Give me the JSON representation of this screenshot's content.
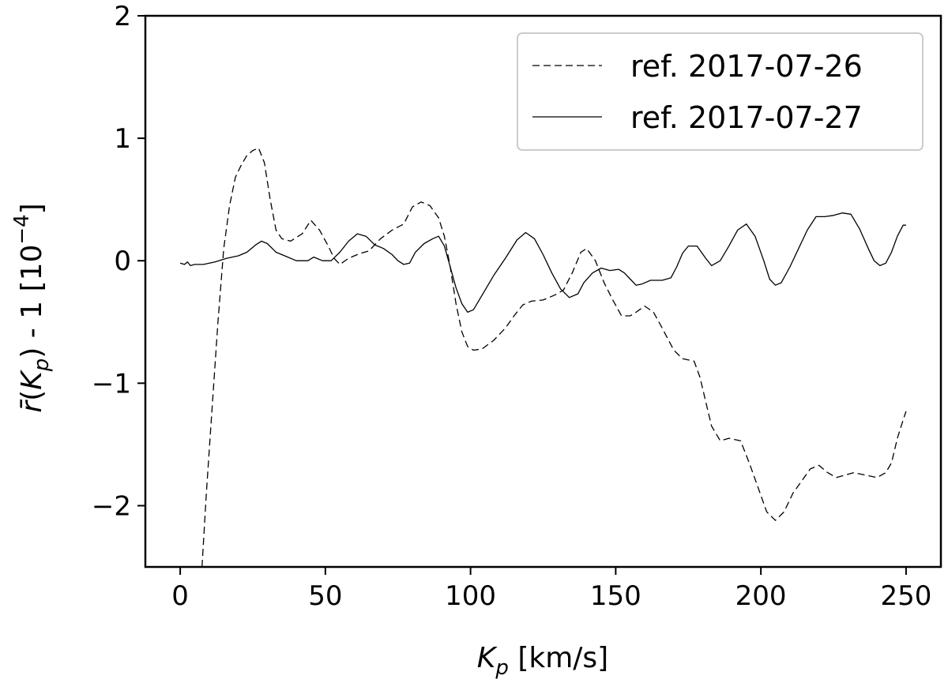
{
  "chart_data": {
    "type": "line",
    "xlabel_var": "K",
    "xlabel_sub": "p",
    "xlabel_unit": " [km/s]",
    "ylabel": {
      "rbar": "r̄",
      "open": "(",
      "var": "K",
      "sub": "p",
      "close": ") - 1 [10",
      "exp": "−4",
      "end": "]"
    },
    "xlim": [
      -12,
      262
    ],
    "ylim": [
      -2.5,
      2
    ],
    "xticks": [
      0,
      50,
      100,
      150,
      200,
      250
    ],
    "xtick_labels": [
      "0",
      "50",
      "100",
      "150",
      "200",
      "250"
    ],
    "yticks": [
      2,
      1,
      0,
      -1,
      -2
    ],
    "ytick_labels": [
      "2",
      "1",
      "0",
      "−1",
      "−2"
    ],
    "legend_position": "upper right",
    "series": [
      {
        "name": "ref. 2017-07-26",
        "style": "dashed",
        "color": "#000000",
        "points": [
          [
            7.5,
            -2.5
          ],
          [
            9,
            -1.9
          ],
          [
            11,
            -1.2
          ],
          [
            13,
            -0.5
          ],
          [
            15,
            0.1
          ],
          [
            17,
            0.45
          ],
          [
            19,
            0.68
          ],
          [
            21,
            0.78
          ],
          [
            23,
            0.86
          ],
          [
            25,
            0.9
          ],
          [
            27,
            0.92
          ],
          [
            29,
            0.8
          ],
          [
            31,
            0.5
          ],
          [
            33,
            0.25
          ],
          [
            35,
            0.18
          ],
          [
            38,
            0.16
          ],
          [
            42,
            0.22
          ],
          [
            45,
            0.33
          ],
          [
            48,
            0.25
          ],
          [
            51,
            0.12
          ],
          [
            53,
            0.02
          ],
          [
            55,
            -0.03
          ],
          [
            58,
            0.02
          ],
          [
            62,
            0.06
          ],
          [
            65,
            0.08
          ],
          [
            69,
            0.18
          ],
          [
            73,
            0.25
          ],
          [
            77,
            0.3
          ],
          [
            80,
            0.44
          ],
          [
            83,
            0.48
          ],
          [
            86,
            0.45
          ],
          [
            89,
            0.35
          ],
          [
            91,
            0.2
          ],
          [
            93,
            -0.05
          ],
          [
            95,
            -0.35
          ],
          [
            97,
            -0.58
          ],
          [
            99,
            -0.7
          ],
          [
            101,
            -0.73
          ],
          [
            104,
            -0.72
          ],
          [
            108,
            -0.65
          ],
          [
            112,
            -0.55
          ],
          [
            115,
            -0.45
          ],
          [
            118,
            -0.36
          ],
          [
            121,
            -0.33
          ],
          [
            125,
            -0.32
          ],
          [
            129,
            -0.28
          ],
          [
            132,
            -0.24
          ],
          [
            135,
            -0.1
          ],
          [
            138,
            0.07
          ],
          [
            140,
            0.1
          ],
          [
            143,
            0.0
          ],
          [
            146,
            -0.18
          ],
          [
            149,
            -0.32
          ],
          [
            152,
            -0.45
          ],
          [
            155,
            -0.45
          ],
          [
            157,
            -0.42
          ],
          [
            160,
            -0.37
          ],
          [
            163,
            -0.42
          ],
          [
            166,
            -0.55
          ],
          [
            170,
            -0.73
          ],
          [
            173,
            -0.8
          ],
          [
            177,
            -0.82
          ],
          [
            179,
            -0.95
          ],
          [
            181,
            -1.15
          ],
          [
            183,
            -1.35
          ],
          [
            186,
            -1.47
          ],
          [
            189,
            -1.45
          ],
          [
            193,
            -1.47
          ],
          [
            196,
            -1.65
          ],
          [
            199,
            -1.85
          ],
          [
            202,
            -2.05
          ],
          [
            205,
            -2.12
          ],
          [
            208,
            -2.05
          ],
          [
            211,
            -1.9
          ],
          [
            214,
            -1.8
          ],
          [
            217,
            -1.7
          ],
          [
            220,
            -1.67
          ],
          [
            223,
            -1.73
          ],
          [
            226,
            -1.77
          ],
          [
            229,
            -1.75
          ],
          [
            232,
            -1.73
          ],
          [
            236,
            -1.75
          ],
          [
            240,
            -1.77
          ],
          [
            243,
            -1.73
          ],
          [
            245,
            -1.65
          ],
          [
            247,
            -1.45
          ],
          [
            249,
            -1.3
          ],
          [
            250,
            -1.23
          ]
        ]
      },
      {
        "name": "ref. 2017-07-27",
        "style": "solid",
        "color": "#000000",
        "points": [
          [
            0,
            -0.02
          ],
          [
            1.5,
            -0.03
          ],
          [
            2.5,
            -0.01
          ],
          [
            3.5,
            -0.04
          ],
          [
            5,
            -0.03
          ],
          [
            8,
            -0.03
          ],
          [
            12,
            -0.01
          ],
          [
            16,
            0.02
          ],
          [
            20,
            0.04
          ],
          [
            23,
            0.07
          ],
          [
            26,
            0.13
          ],
          [
            28,
            0.16
          ],
          [
            30,
            0.14
          ],
          [
            33,
            0.07
          ],
          [
            36,
            0.04
          ],
          [
            40,
            0.0
          ],
          [
            44,
            0.0
          ],
          [
            46,
            0.03
          ],
          [
            49,
            0.0
          ],
          [
            52,
            0.0
          ],
          [
            55,
            0.07
          ],
          [
            58,
            0.16
          ],
          [
            61,
            0.22
          ],
          [
            64,
            0.2
          ],
          [
            67,
            0.13
          ],
          [
            70,
            0.1
          ],
          [
            73,
            0.05
          ],
          [
            75,
            0.0
          ],
          [
            77,
            -0.03
          ],
          [
            79,
            -0.02
          ],
          [
            81,
            0.07
          ],
          [
            84,
            0.14
          ],
          [
            87,
            0.18
          ],
          [
            89,
            0.2
          ],
          [
            91,
            0.12
          ],
          [
            93,
            -0.05
          ],
          [
            95,
            -0.22
          ],
          [
            97,
            -0.35
          ],
          [
            99,
            -0.42
          ],
          [
            101,
            -0.4
          ],
          [
            104,
            -0.28
          ],
          [
            108,
            -0.12
          ],
          [
            112,
            0.02
          ],
          [
            116,
            0.17
          ],
          [
            119,
            0.23
          ],
          [
            122,
            0.18
          ],
          [
            125,
            0.05
          ],
          [
            128,
            -0.1
          ],
          [
            131,
            -0.23
          ],
          [
            134,
            -0.3
          ],
          [
            137,
            -0.27
          ],
          [
            139,
            -0.18
          ],
          [
            142,
            -0.1
          ],
          [
            145,
            -0.06
          ],
          [
            148,
            -0.08
          ],
          [
            151,
            -0.07
          ],
          [
            153,
            -0.1
          ],
          [
            155,
            -0.15
          ],
          [
            157,
            -0.2
          ],
          [
            159,
            -0.19
          ],
          [
            162,
            -0.16
          ],
          [
            166,
            -0.16
          ],
          [
            169,
            -0.14
          ],
          [
            171,
            -0.05
          ],
          [
            173,
            0.06
          ],
          [
            175,
            0.12
          ],
          [
            178,
            0.12
          ],
          [
            181,
            0.02
          ],
          [
            183,
            -0.04
          ],
          [
            186,
            0.0
          ],
          [
            189,
            0.12
          ],
          [
            192,
            0.25
          ],
          [
            195,
            0.3
          ],
          [
            198,
            0.2
          ],
          [
            201,
            0.0
          ],
          [
            203,
            -0.15
          ],
          [
            205,
            -0.2
          ],
          [
            207,
            -0.18
          ],
          [
            210,
            -0.05
          ],
          [
            213,
            0.1
          ],
          [
            216,
            0.25
          ],
          [
            219,
            0.36
          ],
          [
            222,
            0.36
          ],
          [
            225,
            0.37
          ],
          [
            228,
            0.39
          ],
          [
            231,
            0.38
          ],
          [
            234,
            0.26
          ],
          [
            237,
            0.1
          ],
          [
            239,
            0.0
          ],
          [
            241,
            -0.04
          ],
          [
            243,
            -0.02
          ],
          [
            245,
            0.07
          ],
          [
            247,
            0.2
          ],
          [
            249,
            0.29
          ],
          [
            250,
            0.29
          ]
        ]
      }
    ]
  }
}
